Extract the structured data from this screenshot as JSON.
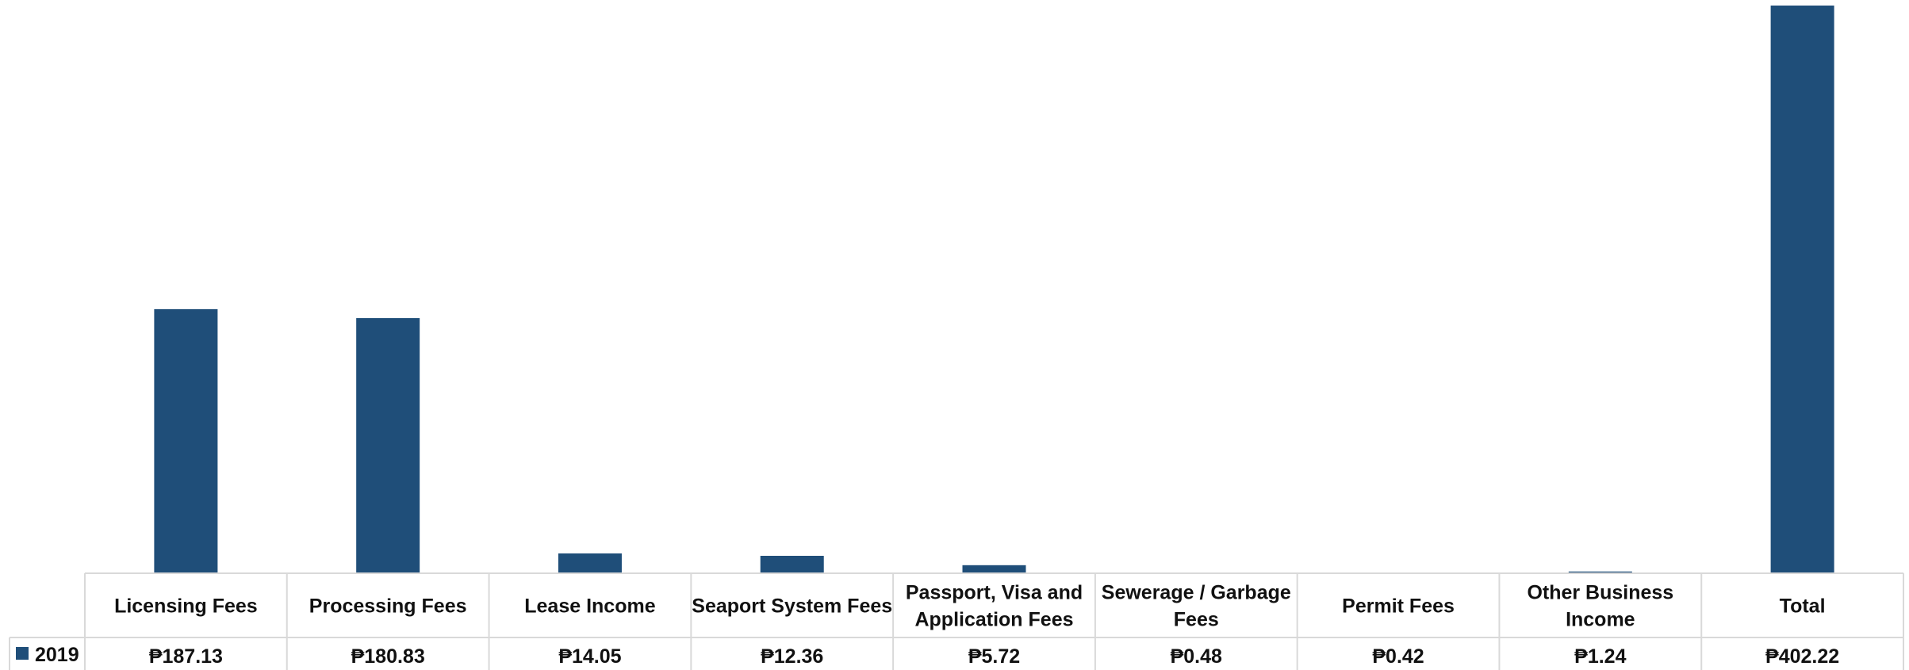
{
  "chart_data": {
    "type": "bar",
    "title": "",
    "xlabel": "",
    "ylabel": "",
    "categories": [
      [
        "Licensing Fees"
      ],
      [
        "Processing Fees"
      ],
      [
        "Lease Income"
      ],
      [
        "Seaport System Fees"
      ],
      [
        "Passport, Visa and",
        "Application Fees"
      ],
      [
        "Sewerage / Garbage",
        "Fees"
      ],
      [
        "Permit Fees"
      ],
      [
        "Other Business",
        "Income"
      ],
      [
        "Total"
      ]
    ],
    "series": [
      {
        "name": "2019",
        "color": "#1F4E79",
        "values": [
          187.13,
          180.83,
          14.05,
          12.36,
          5.72,
          0.48,
          0.42,
          1.24,
          402.22
        ],
        "labels": [
          "₱187.13",
          "₱180.83",
          "₱14.05",
          "₱12.36",
          "₱5.72",
          "₱0.48",
          "₱0.42",
          "₱1.24",
          "₱402.22"
        ]
      }
    ],
    "ylim": [
      0,
      402.22
    ],
    "grid": false,
    "legend": "data-table-left",
    "data_table": true
  }
}
